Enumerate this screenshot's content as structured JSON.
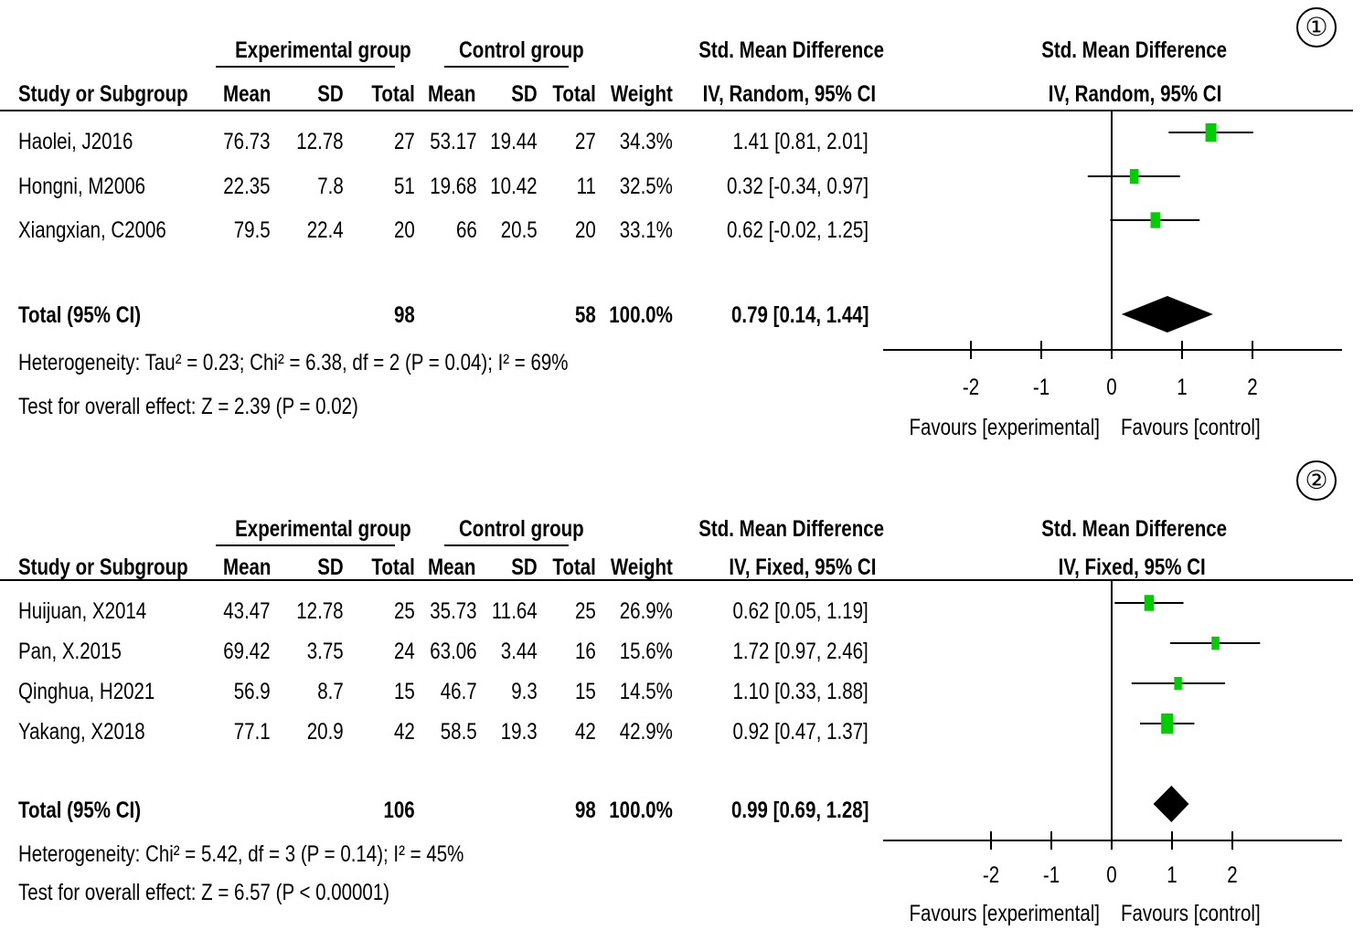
{
  "chart_data": [
    {
      "type": "table",
      "panel_label": "1",
      "group_headers": {
        "experimental": "Experimental group",
        "control": "Control group",
        "effect": "Std. Mean Difference",
        "plot": "Std. Mean Difference"
      },
      "columns": [
        "Study or Subgroup",
        "Mean",
        "SD",
        "Total",
        "Mean",
        "SD",
        "Total",
        "Weight",
        "IV, Random, 95% CI",
        "IV, Random, 95% CI"
      ],
      "studies": [
        {
          "name": "Haolei, J2016",
          "e_mean": "76.73",
          "e_sd": "12.78",
          "e_total": "27",
          "c_mean": "53.17",
          "c_sd": "19.44",
          "c_total": "27",
          "weight": "34.3%",
          "ci_text": "1.41 [0.81, 2.01]",
          "est": 1.41,
          "lo": 0.81,
          "hi": 2.01,
          "w": 34.3
        },
        {
          "name": "Hongni, M2006",
          "e_mean": "22.35",
          "e_sd": "7.8",
          "e_total": "51",
          "c_mean": "19.68",
          "c_sd": "10.42",
          "c_total": "11",
          "weight": "32.5%",
          "ci_text": "0.32 [-0.34, 0.97]",
          "est": 0.32,
          "lo": -0.34,
          "hi": 0.97,
          "w": 32.5
        },
        {
          "name": "Xiangxian, C2006",
          "e_mean": "79.5",
          "e_sd": "22.4",
          "e_total": "20",
          "c_mean": "66",
          "c_sd": "20.5",
          "c_total": "20",
          "weight": "33.1%",
          "ci_text": "0.62 [-0.02, 1.25]",
          "est": 0.62,
          "lo": -0.02,
          "hi": 1.25,
          "w": 33.1
        }
      ],
      "total": {
        "label": "Total (95% CI)",
        "e_total": "98",
        "c_total": "58",
        "weight": "100.0%",
        "ci_text": "0.79 [0.14, 1.44]",
        "est": 0.79,
        "lo": 0.14,
        "hi": 1.44
      },
      "heterogeneity": "Heterogeneity: Tau² = 0.23; Chi² = 6.38, df = 2 (P = 0.04); I² = 69%",
      "overall_effect": "Test for overall effect: Z = 2.39 (P = 0.02)",
      "xlim": [
        -3.2,
        3.3
      ],
      "ticks": [
        -2,
        -1,
        0,
        1,
        2
      ],
      "tick_labels": [
        "-2",
        "-1",
        "0",
        "1",
        "2"
      ],
      "favours_left": "Favours [experimental]",
      "favours_right": "Favours [control]",
      "colors": {
        "marker": "#00cc00",
        "diamond": "#000000"
      }
    },
    {
      "type": "table",
      "panel_label": "2",
      "group_headers": {
        "experimental": "Experimental group",
        "control": "Control group",
        "effect": "Std. Mean Difference",
        "plot": "Std. Mean Difference"
      },
      "columns": [
        "Study or Subgroup",
        "Mean",
        "SD",
        "Total",
        "Mean",
        "SD",
        "Total",
        "Weight",
        "IV, Fixed, 95% CI",
        "IV, Fixed, 95% CI"
      ],
      "studies": [
        {
          "name": "Huijuan, X2014",
          "e_mean": "43.47",
          "e_sd": "12.78",
          "e_total": "25",
          "c_mean": "35.73",
          "c_sd": "11.64",
          "c_total": "25",
          "weight": "26.9%",
          "ci_text": "0.62 [0.05, 1.19]",
          "est": 0.62,
          "lo": 0.05,
          "hi": 1.19,
          "w": 26.9
        },
        {
          "name": "Pan, X.2015",
          "e_mean": "69.42",
          "e_sd": "3.75",
          "e_total": "24",
          "c_mean": "63.06",
          "c_sd": "3.44",
          "c_total": "16",
          "weight": "15.6%",
          "ci_text": "1.72 [0.97, 2.46]",
          "est": 1.72,
          "lo": 0.97,
          "hi": 2.46,
          "w": 15.6
        },
        {
          "name": "Qinghua, H2021",
          "e_mean": "56.9",
          "e_sd": "8.7",
          "e_total": "15",
          "c_mean": "46.7",
          "c_sd": "9.3",
          "c_total": "15",
          "weight": "14.5%",
          "ci_text": "1.10 [0.33, 1.88]",
          "est": 1.1,
          "lo": 0.33,
          "hi": 1.88,
          "w": 14.5
        },
        {
          "name": "Yakang, X2018",
          "e_mean": "77.1",
          "e_sd": "20.9",
          "e_total": "42",
          "c_mean": "58.5",
          "c_sd": "19.3",
          "c_total": "42",
          "weight": "42.9%",
          "ci_text": "0.92 [0.47, 1.37]",
          "est": 0.92,
          "lo": 0.47,
          "hi": 1.37,
          "w": 42.9
        }
      ],
      "total": {
        "label": "Total (95% CI)",
        "e_total": "106",
        "c_total": "98",
        "weight": "100.0%",
        "ci_text": "0.99 [0.69, 1.28]",
        "est": 0.99,
        "lo": 0.69,
        "hi": 1.28
      },
      "heterogeneity": "Heterogeneity: Chi² = 5.42, df = 3 (P = 0.14); I² = 45%",
      "overall_effect": "Test for overall effect: Z = 6.57 (P < 0.00001)",
      "xlim": [
        -4.0,
        4.0
      ],
      "ticks": [
        -2,
        -1,
        0,
        1,
        2
      ],
      "tick_labels": [
        "-2",
        "-1",
        "0",
        "1",
        "2"
      ],
      "favours_left": "Favours [experimental]",
      "favours_right": "Favours [control]",
      "colors": {
        "marker": "#00cc00",
        "diamond": "#000000"
      }
    }
  ],
  "badges": [
    "①",
    "②"
  ]
}
